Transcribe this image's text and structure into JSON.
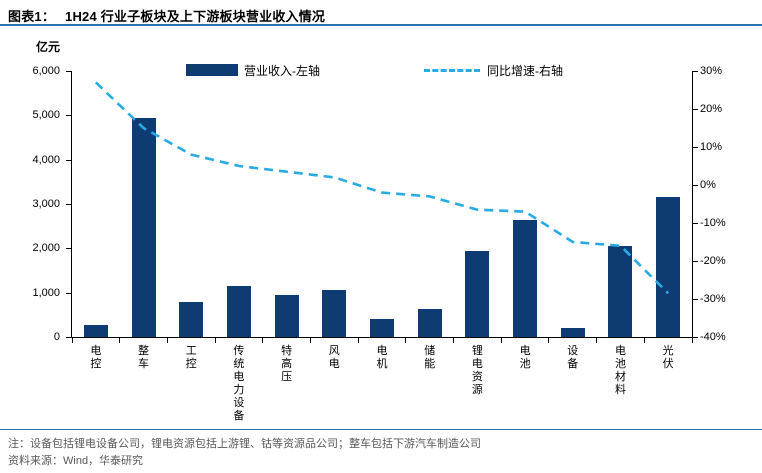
{
  "header": {
    "figure_label": "图表1：",
    "title": "1H24 行业子板块及上下游板块营业收入情况"
  },
  "unit_label": "亿元",
  "legend": {
    "bar_label": "营业收入-左轴",
    "line_label": "同比增速-右轴"
  },
  "notes": {
    "note": "注：设备包括锂电设备公司，锂电资源包括上游锂、钴等资源品公司；整车包括下游汽车制造公司",
    "source": "资料来源：Wind，华泰研究"
  },
  "colors": {
    "bar": "#0e3c72",
    "line": "#29abe2",
    "rule": "#2e74b5",
    "note_text": "#595959",
    "axis": "#000000"
  },
  "chart_data": {
    "type": "bar",
    "title": "1H24 行业子板块及上下游板块营业收入情况",
    "categories": [
      "电控",
      "整车",
      "工控",
      "传统电力设备",
      "特高压",
      "风电",
      "电机",
      "储能",
      "锂电资源",
      "电池",
      "设备",
      "电池材料",
      "光伏"
    ],
    "series": [
      {
        "name": "营业收入-左轴",
        "type": "bar",
        "axis": "left",
        "values": [
          270,
          4950,
          780,
          1150,
          950,
          1050,
          400,
          640,
          1950,
          2650,
          200,
          2050,
          3150
        ]
      },
      {
        "name": "同比增速-右轴",
        "type": "line",
        "axis": "right",
        "values": [
          27,
          15,
          8,
          5,
          3.5,
          2,
          -2,
          -3,
          -6.5,
          -7,
          -15,
          -16,
          -28.5
        ]
      }
    ],
    "left_axis": {
      "label": "亿元",
      "min": 0,
      "max": 6000,
      "step": 1000,
      "ticks_top_to_bottom": [
        "6,000",
        "5,000",
        "4,000",
        "3,000",
        "2,000",
        "1,000",
        "0"
      ]
    },
    "right_axis": {
      "label": "%",
      "min": -40,
      "max": 30,
      "step": 10,
      "ticks_top_to_bottom": [
        "30%",
        "20%",
        "10%",
        "0%",
        "-10%",
        "-20%",
        "-30%",
        "-40%"
      ]
    },
    "grid": false,
    "legend_position": "top-inside"
  }
}
